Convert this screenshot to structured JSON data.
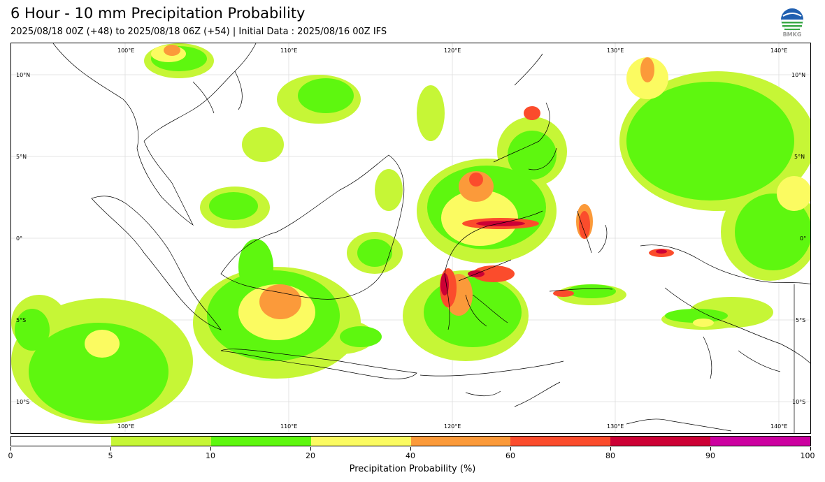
{
  "header": {
    "title": "6 Hour - 10 mm Precipitation Probability",
    "subtitle": "2025/08/18 00Z (+48) to 2025/08/18 06Z (+54) | Initial Data : 2025/08/16 00Z IFS",
    "logo_text": "BMKG",
    "logo_icon": "bmkg-logo-icon"
  },
  "map": {
    "lon_labels": [
      "100°E",
      "110°E",
      "120°E",
      "130°E",
      "140°E"
    ],
    "lat_labels": [
      "10°N",
      "5°N",
      "0°",
      "5°S",
      "10°S"
    ],
    "land_color": "#ffffff",
    "coast_color": "#000000"
  },
  "colorbar": {
    "title": "Precipitation Probability (%)",
    "ticks": [
      "0",
      "5",
      "10",
      "20",
      "40",
      "60",
      "80",
      "90",
      "100"
    ],
    "colors": [
      "#ffffff",
      "#c6f636",
      "#5ef70f",
      "#fbfb61",
      "#fb9a3a",
      "#fb4c2c",
      "#cc0035",
      "#cc00a0"
    ]
  }
}
